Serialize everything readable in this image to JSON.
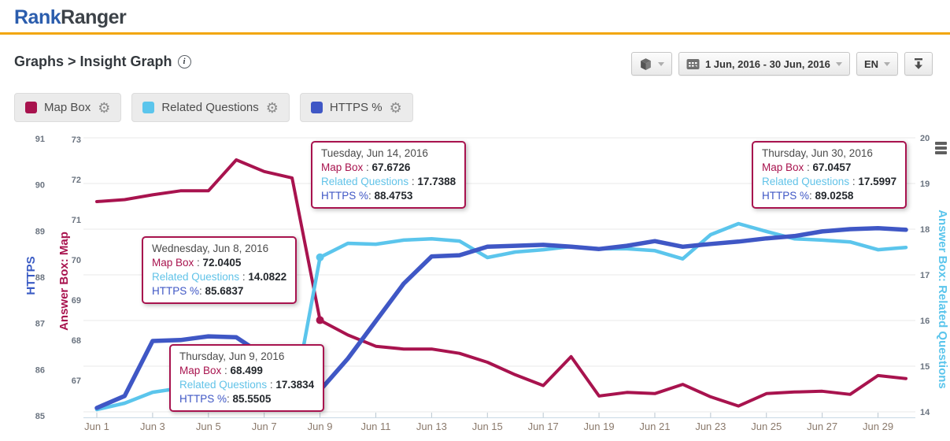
{
  "header": {
    "logo_primary": "Rank",
    "logo_secondary": "Ranger"
  },
  "breadcrumb": {
    "text": "Graphs > Insight Graph"
  },
  "toolbar": {
    "date_range": "1 Jun, 2016 - 30 Jun, 2016",
    "language": "EN"
  },
  "icons": {
    "package_button": "cube-icon",
    "date_button": "calendar-icon",
    "dropdowns": "caret-down-icon",
    "export_button": "download-icon",
    "legend_settings": "gear-icon",
    "title_help": "info-icon",
    "chart_menu": "hamburger-menu-icon"
  },
  "legend": [
    {
      "label": "Map Box",
      "color": "#a8134e"
    },
    {
      "label": "Related Questions",
      "color": "#5bc5ec"
    },
    {
      "label": "HTTPS %",
      "color": "#3f57c5"
    }
  ],
  "chart_data": {
    "type": "line",
    "x_unit": "day of June 2016",
    "x_tick_labels": [
      "Jun 1",
      "Jun 3",
      "Jun 5",
      "Jun 7",
      "Jun 9",
      "Jun 11",
      "Jun 13",
      "Jun 15",
      "Jun 17",
      "Jun 19",
      "Jun 21",
      "Jun 23",
      "Jun 25",
      "Jun 27",
      "Jun 29"
    ],
    "grid": "horizontal",
    "axes": {
      "left_outer": {
        "title": "HTTPS",
        "color": "#3a5bc4",
        "ticks": [
          91,
          90,
          89,
          88,
          87,
          86,
          85
        ],
        "range": [
          85,
          91
        ]
      },
      "left_inner": {
        "title": "Answer Box: Map",
        "color": "#a8134e",
        "ticks": [
          73,
          72,
          71,
          70,
          69,
          68,
          67
        ],
        "range": [
          66,
          73
        ]
      },
      "right": {
        "title": "Answer Box: Related Questions",
        "color": "#5bc5ec",
        "ticks": [
          20,
          19,
          18,
          17,
          16,
          15,
          14
        ],
        "range": [
          14,
          20
        ]
      }
    },
    "marker_day": 9,
    "series": [
      {
        "name": "Map Box",
        "axis": "map",
        "color": "#a8134e",
        "values": [
          71.45,
          71.5,
          71.62,
          71.72,
          71.72,
          72.49,
          72.2,
          72.0405,
          68.499,
          68.13,
          67.85,
          67.78,
          67.78,
          67.6726,
          67.45,
          67.14,
          66.87,
          67.59,
          66.61,
          66.7,
          66.67,
          66.9,
          66.59,
          66.36,
          66.67,
          66.71,
          66.73,
          66.65,
          67.12,
          67.0457
        ]
      },
      {
        "name": "Related Questions",
        "axis": "rq",
        "color": "#5bc5ec",
        "values": [
          14.05,
          14.19,
          14.43,
          14.52,
          14.55,
          14.45,
          14.25,
          14.0822,
          17.3834,
          17.69,
          17.67,
          17.76,
          17.79,
          17.7388,
          17.38,
          17.5,
          17.55,
          17.62,
          17.57,
          17.57,
          17.53,
          17.35,
          17.88,
          18.12,
          17.95,
          17.79,
          17.76,
          17.72,
          17.55,
          17.5997
        ]
      },
      {
        "name": "HTTPS %",
        "axis": "https",
        "color": "#3f57c5",
        "values": [
          85.17,
          85.43,
          86.62,
          86.64,
          86.72,
          86.7,
          86.3,
          85.6837,
          85.5505,
          86.24,
          87.05,
          87.86,
          88.45,
          88.4753,
          88.66,
          88.68,
          88.7,
          88.66,
          88.61,
          88.68,
          88.78,
          88.66,
          88.72,
          88.77,
          88.84,
          88.89,
          88.99,
          89.04,
          89.06,
          89.0258
        ]
      }
    ]
  },
  "tooltip_labels": {
    "map_box": "Map Box",
    "related_questions": "Related Questions",
    "https": "HTTPS %"
  },
  "tooltips": [
    {
      "date": "Tuesday, Jun 14, 2016",
      "map_box": "67.6726",
      "related_questions": "17.7388",
      "https": "88.4753"
    },
    {
      "date": "Thursday, Jun 30, 2016",
      "map_box": "67.0457",
      "related_questions": "17.5997",
      "https": "89.0258"
    },
    {
      "date": "Wednesday, Jun 8, 2016",
      "map_box": "72.0405",
      "related_questions": "14.0822",
      "https": "85.6837"
    },
    {
      "date": "Thursday, Jun 9, 2016",
      "map_box": "68.499",
      "related_questions": "17.3834",
      "https": "85.5505"
    }
  ]
}
